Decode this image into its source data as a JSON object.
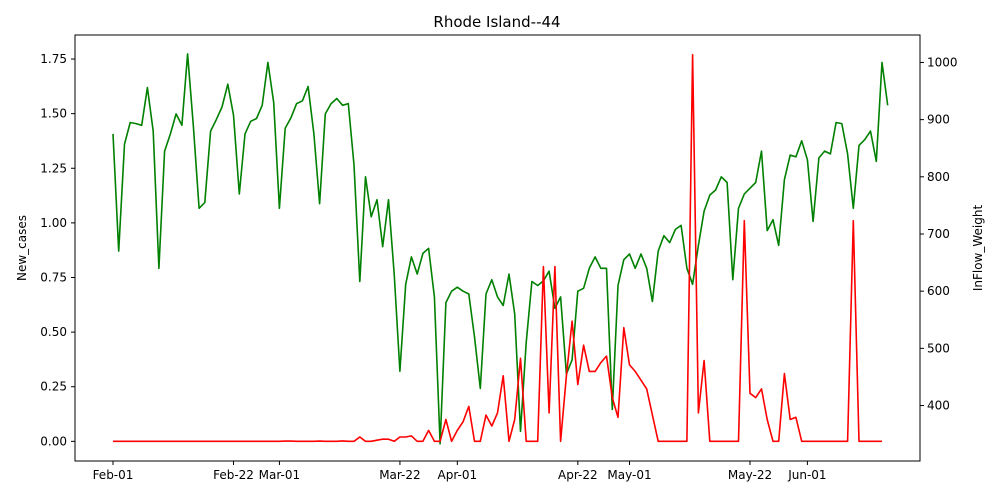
{
  "chart_data": {
    "type": "line",
    "title": "Rhode Island--44",
    "ylabel_left": "New_cases",
    "ylabel_right": "InFlow_Weight",
    "x_start": "2020-02-01",
    "x_ticks": [
      {
        "label": "Feb-01",
        "day": 0
      },
      {
        "label": "Feb-22",
        "day": 21
      },
      {
        "label": "Mar-01",
        "day": 29
      },
      {
        "label": "Mar-22",
        "day": 50
      },
      {
        "label": "Apr-01",
        "day": 60
      },
      {
        "label": "Apr-22",
        "day": 81
      },
      {
        "label": "May-01",
        "day": 90
      },
      {
        "label": "May-22",
        "day": 111
      },
      {
        "label": "Jun-01",
        "day": 121
      }
    ],
    "y_left_ticks": [
      "0.00",
      "0.25",
      "0.50",
      "0.75",
      "1.00",
      "1.25",
      "1.50",
      "1.75"
    ],
    "y_left_lim": [
      -0.09,
      1.86
    ],
    "y_right_ticks": [
      "400",
      "500",
      "600",
      "700",
      "800",
      "900",
      "1000"
    ],
    "y_right_lim": [
      303,
      1048
    ],
    "colors": {
      "new_cases": "#ff0000",
      "inflow": "#008000"
    },
    "series": [
      {
        "name": "New_cases",
        "axis": "left",
        "color": "#ff0000",
        "values": [
          0,
          0,
          0,
          0,
          0,
          0,
          0,
          0,
          0,
          0,
          0,
          0,
          0,
          0,
          0,
          0,
          0,
          0,
          0,
          0,
          0,
          0,
          0,
          0,
          0,
          0,
          0,
          0,
          0,
          0,
          0.001,
          0.001,
          0,
          0,
          0,
          0,
          0.001,
          0,
          0,
          0,
          0.002,
          0,
          0,
          0.02,
          0,
          0,
          0.005,
          0.01,
          0.01,
          0,
          0.02,
          0.02,
          0.025,
          0,
          0,
          0.05,
          0,
          0,
          0.1,
          0,
          0.05,
          0.09,
          0.16,
          0,
          0,
          0.12,
          0.07,
          0.13,
          0.3,
          0,
          0.1,
          0.38,
          0,
          0,
          0,
          0.8,
          0.13,
          0.8,
          0,
          0.3,
          0.55,
          0.26,
          0.44,
          0.32,
          0.32,
          0.36,
          0.39,
          0.2,
          0.11,
          0.52,
          0.35,
          0.32,
          0.28,
          0.24,
          0.12,
          0,
          0,
          0,
          0,
          0,
          0,
          1.77,
          0.13,
          0.37,
          0,
          0,
          0,
          0,
          0,
          0,
          1.01,
          0.22,
          0.2,
          0.24,
          0.1,
          0,
          0,
          0.31,
          0.1,
          0.11,
          0,
          0,
          0,
          0,
          0,
          0,
          0,
          0,
          0,
          1.01,
          0,
          0,
          0,
          0,
          0
        ]
      },
      {
        "name": "InFlow_Weight",
        "axis": "right",
        "color": "#008000",
        "values": [
          875,
          670,
          857,
          895,
          893,
          890,
          956,
          880,
          640,
          845,
          875,
          910,
          890,
          1015,
          890,
          745,
          755,
          880,
          900,
          922,
          962,
          908,
          770,
          875,
          897,
          902,
          925,
          1000,
          930,
          745,
          885,
          903,
          928,
          933,
          958,
          875,
          753,
          910,
          928,
          937,
          925,
          928,
          821,
          617,
          800,
          730,
          760,
          678,
          760,
          630,
          460,
          612,
          660,
          630,
          666,
          675,
          590,
          333,
          580,
          600,
          607,
          600,
          595,
          520,
          430,
          595,
          620,
          590,
          575,
          630,
          560,
          355,
          510,
          617,
          610,
          618,
          635,
          570,
          590,
          455,
          480,
          600,
          605,
          640,
          660,
          640,
          640,
          393,
          610,
          655,
          665,
          640,
          665,
          640,
          582,
          670,
          697,
          685,
          708,
          715,
          640,
          612,
          680,
          740,
          768,
          777,
          800,
          790,
          620,
          745,
          770,
          780,
          790,
          845,
          706,
          725,
          680,
          795,
          838,
          835,
          863,
          830,
          722,
          833,
          845,
          840,
          895,
          893,
          840,
          745,
          855,
          865,
          880,
          827,
          1000,
          925
        ]
      }
    ]
  }
}
